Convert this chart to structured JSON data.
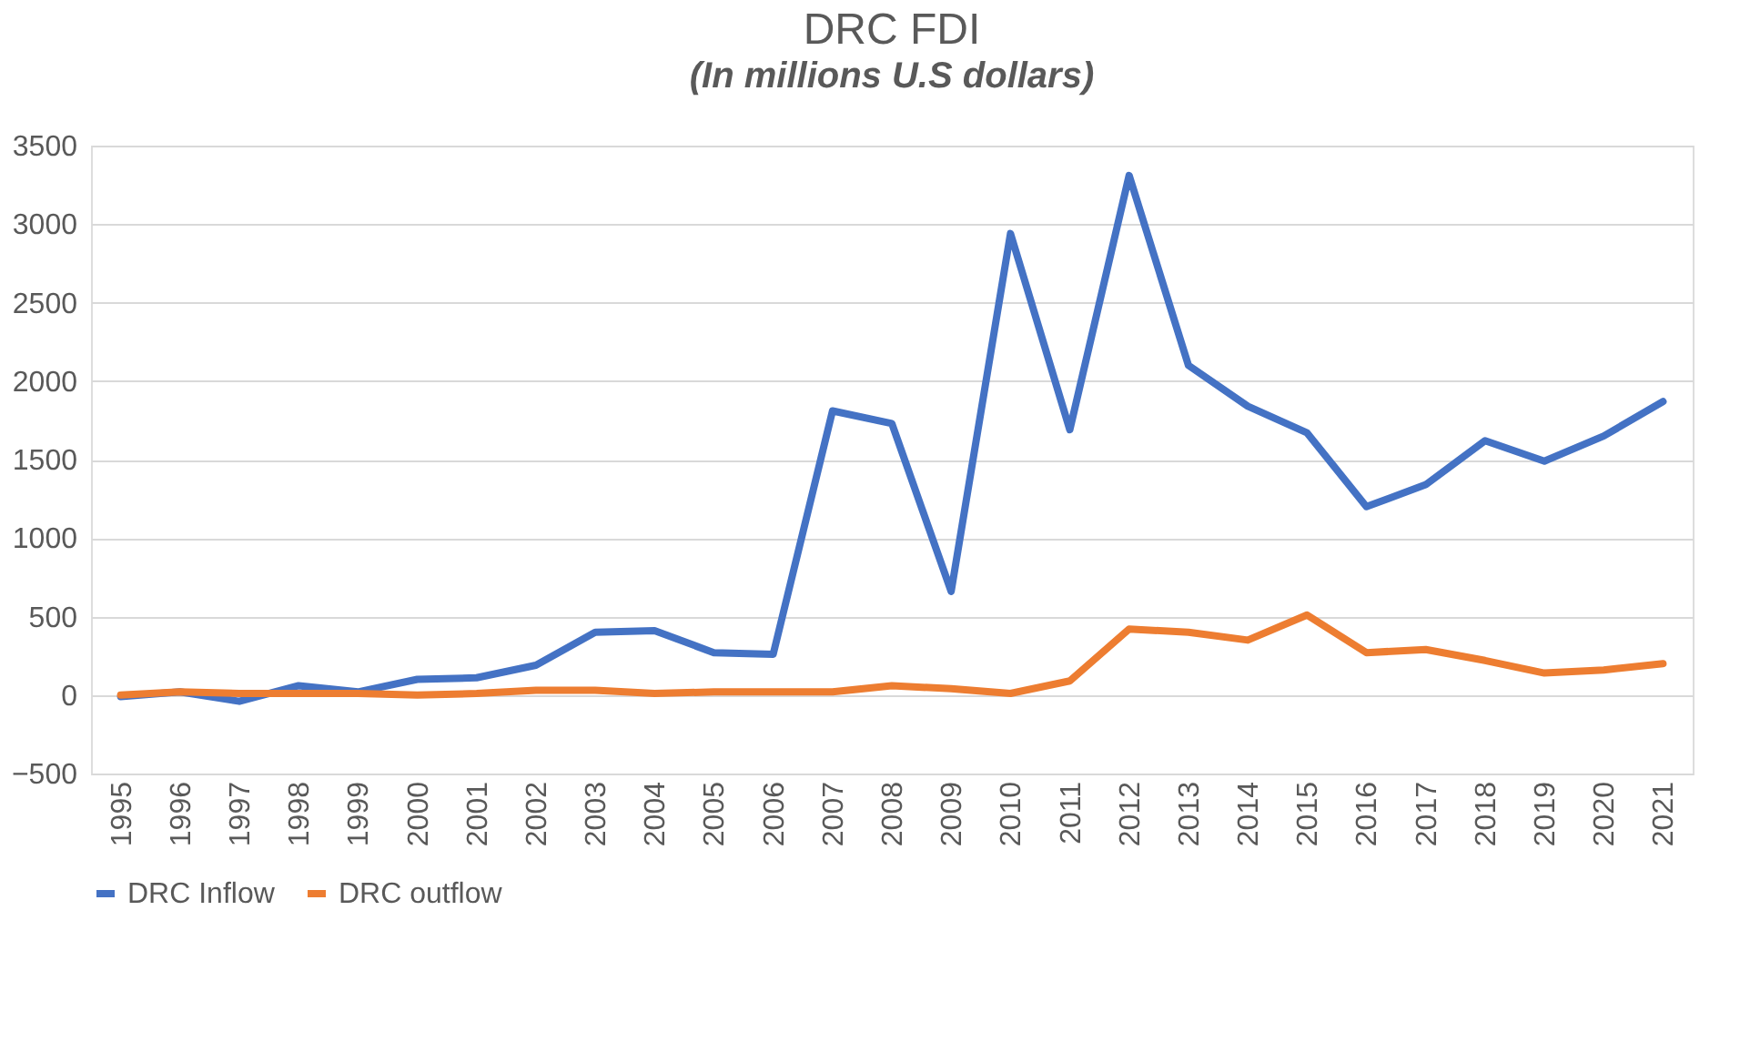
{
  "chart_data": {
    "type": "line",
    "title": "DRC FDI",
    "subtitle": "(In millions U.S dollars)",
    "categories": [
      "1995",
      "1996",
      "1997",
      "1998",
      "1999",
      "2000",
      "2001",
      "2002",
      "2003",
      "2004",
      "2005",
      "2006",
      "2007",
      "2008",
      "2009",
      "2010",
      "2011",
      "2012",
      "2013",
      "2014",
      "2015",
      "2016",
      "2017",
      "2018",
      "2019",
      "2020",
      "2021"
    ],
    "series": [
      {
        "name": "DRC Inflow",
        "color": "#4472c4",
        "values": [
          -10,
          20,
          -40,
          60,
          20,
          100,
          110,
          190,
          400,
          410,
          270,
          260,
          1810,
          1730,
          660,
          2940,
          1690,
          3310,
          2100,
          1840,
          1670,
          1200,
          1340,
          1620,
          1490,
          1650,
          1870
        ]
      },
      {
        "name": "DRC outflow",
        "color": "#ed7d31",
        "values": [
          0,
          20,
          10,
          10,
          10,
          0,
          10,
          30,
          30,
          10,
          20,
          20,
          20,
          60,
          40,
          10,
          90,
          420,
          400,
          350,
          510,
          270,
          290,
          220,
          140,
          160,
          200
        ]
      }
    ],
    "ylim": [
      -500,
      3500
    ],
    "yticks": [
      -500,
      0,
      500,
      1000,
      1500,
      2000,
      2500,
      3000,
      3500
    ],
    "grid": "y",
    "legend": "bottom",
    "marker": "none",
    "line_style": "solid"
  }
}
